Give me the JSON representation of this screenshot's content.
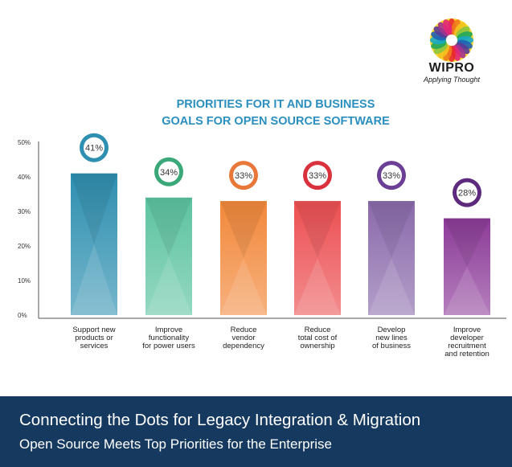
{
  "logo": {
    "name": "WIPRO",
    "tagline": "Applying Thought"
  },
  "chart_data": {
    "type": "bar",
    "title": "PRIORITIES FOR IT AND BUSINESS GOALS FOR OPEN SOURCE SOFTWARE",
    "title_lines": [
      "PRIORITIES FOR IT AND BUSINESS",
      "GOALS FOR OPEN SOURCE SOFTWARE"
    ],
    "categories": [
      [
        "Support new",
        "products or",
        "services"
      ],
      [
        "Improve",
        "functionality",
        "for power users"
      ],
      [
        "Reduce",
        "vendor",
        "dependency"
      ],
      [
        "Reduce",
        "total cost of",
        "ownership"
      ],
      [
        "Develop",
        "new lines",
        "of business"
      ],
      [
        "Improve",
        "developer",
        "recruitment",
        "and retention"
      ]
    ],
    "values": [
      41,
      34,
      33,
      33,
      33,
      28
    ],
    "value_labels": [
      "41%",
      "34%",
      "33%",
      "33%",
      "33%",
      "28%"
    ],
    "y_ticks": [
      "0%",
      "10%",
      "20%",
      "30%",
      "40%",
      "50%"
    ],
    "ylim": [
      0,
      50
    ],
    "xlabel": "",
    "ylabel": "",
    "colors": [
      "#2e8fb0",
      "#5cc3a0",
      "#f2883a",
      "#ec4f52",
      "#8a6aab",
      "#8c3b98"
    ],
    "badge_colors": [
      "#2e8fb0",
      "#3aa878",
      "#e8773a",
      "#d9323c",
      "#6c3f96",
      "#5e2a7e"
    ]
  },
  "footer": {
    "line1": "Connecting the Dots for Legacy Integration & Migration",
    "line2": "Open Source Meets Top Priorities for the Enterprise"
  }
}
